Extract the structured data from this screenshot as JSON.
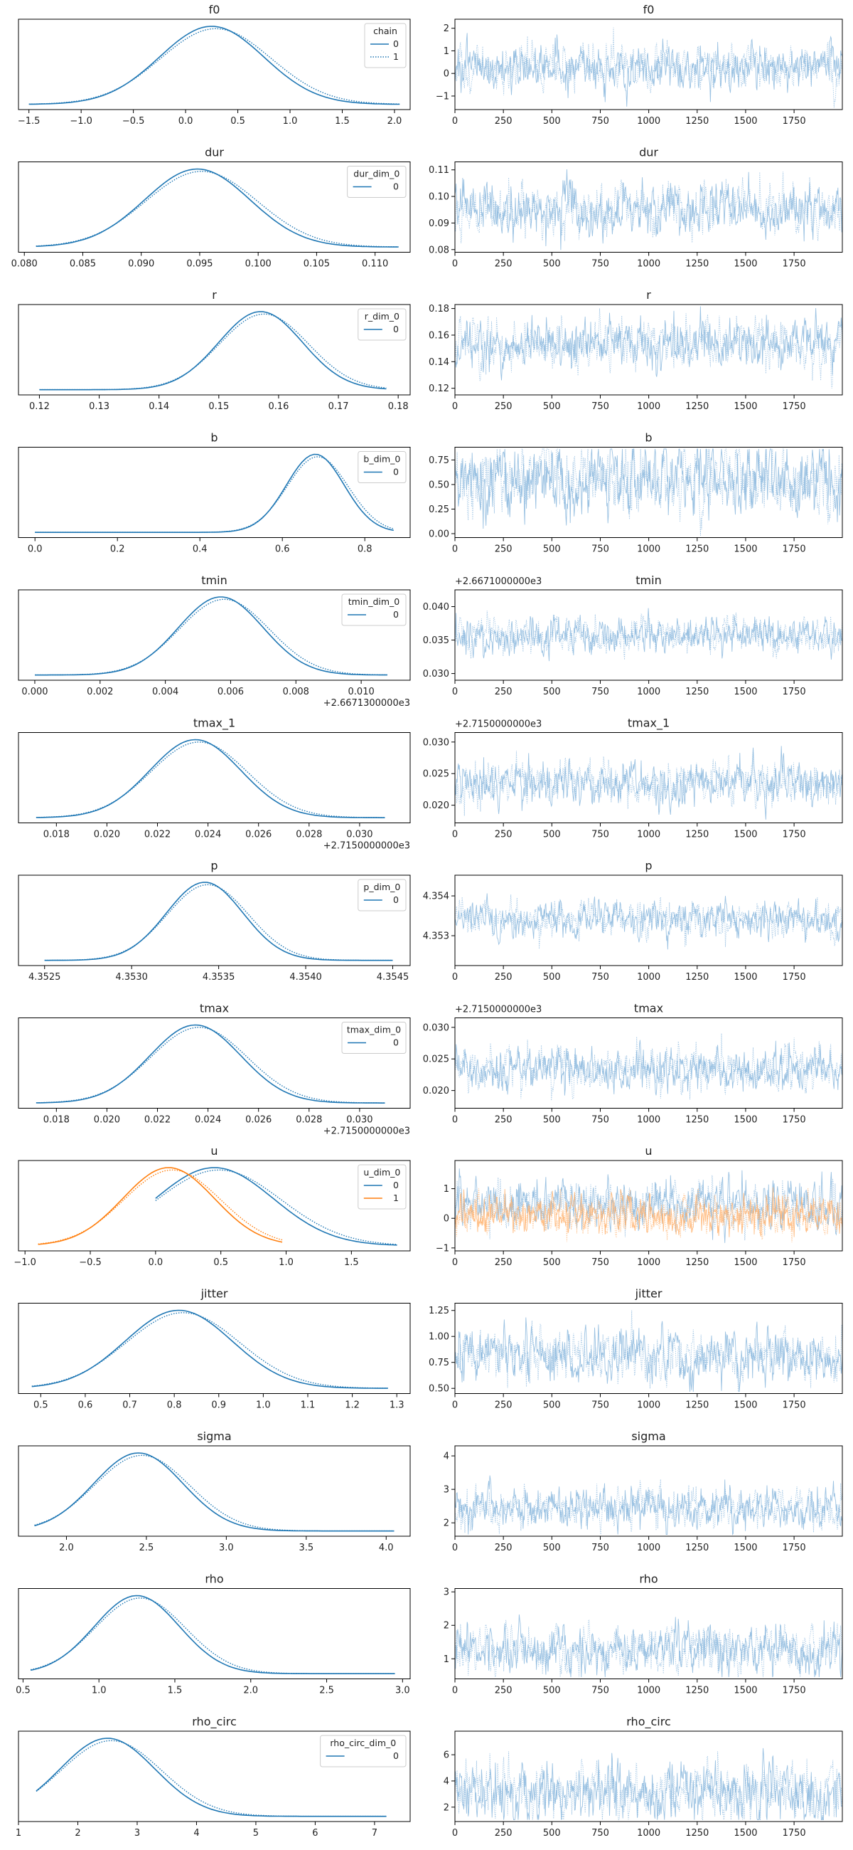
{
  "chart_data": {
    "type": "line",
    "colors": {
      "chain0": "#1f77b4",
      "chain1": "#ff7f0e",
      "trace": "#8ab7dd",
      "trace_u1": "#ffb370"
    },
    "trace_x_ticks": [
      "0",
      "250",
      "500",
      "750",
      "1000",
      "1250",
      "1500",
      "1750"
    ],
    "trace_xlim": [
      0,
      1999
    ],
    "rows": [
      {
        "name": "f0",
        "kde": {
          "title": "f0",
          "xlim": [
            -1.6,
            2.15
          ],
          "ticks": [
            -1.5,
            -1.0,
            -0.5,
            0.0,
            0.5,
            1.0,
            1.5,
            2.0
          ],
          "tick_labels": [
            "−1.5",
            "−1.0",
            "−0.5",
            "0.0",
            "0.5",
            "1.0",
            "1.5",
            "2.0"
          ],
          "mean": 0.25,
          "sd": 0.5,
          "range": [
            -1.5,
            2.05
          ],
          "legend": {
            "title": "chain",
            "entries": [
              "0",
              "1"
            ]
          }
        },
        "trace": {
          "title": "f0",
          "ylim": [
            -1.6,
            2.4
          ],
          "ticks": [
            -1,
            0,
            1,
            2
          ],
          "tick_labels": [
            "−1",
            "0",
            "1",
            "2"
          ],
          "mean": 0.25,
          "sd": 0.5
        }
      },
      {
        "name": "dur",
        "kde": {
          "title": "dur",
          "xlim": [
            0.0795,
            0.113
          ],
          "ticks": [
            0.08,
            0.085,
            0.09,
            0.095,
            0.1,
            0.105,
            0.11
          ],
          "tick_labels": [
            "0.080",
            "0.085",
            "0.090",
            "0.095",
            "0.100",
            "0.105",
            "0.110"
          ],
          "mean": 0.0948,
          "sd": 0.0045,
          "range": [
            0.081,
            0.112
          ],
          "legend": {
            "title": "dur_dim_0",
            "entries": [
              "0"
            ]
          }
        },
        "trace": {
          "title": "dur",
          "ylim": [
            0.079,
            0.113
          ],
          "ticks": [
            0.08,
            0.09,
            0.1,
            0.11
          ],
          "tick_labels": [
            "0.08",
            "0.09",
            "0.10",
            "0.11"
          ],
          "mean": 0.0948,
          "sd": 0.0045
        }
      },
      {
        "name": "r",
        "kde": {
          "title": "r",
          "xlim": [
            0.1165,
            0.182
          ],
          "ticks": [
            0.12,
            0.13,
            0.14,
            0.15,
            0.16,
            0.17,
            0.18
          ],
          "tick_labels": [
            "0.12",
            "0.13",
            "0.14",
            "0.15",
            "0.16",
            "0.17",
            "0.18"
          ],
          "mean": 0.157,
          "sd": 0.007,
          "range": [
            0.12,
            0.178
          ],
          "legend": {
            "title": "r_dim_0",
            "entries": [
              "0"
            ]
          }
        },
        "trace": {
          "title": "r",
          "ylim": [
            0.115,
            0.183
          ],
          "ticks": [
            0.12,
            0.14,
            0.16,
            0.18
          ],
          "tick_labels": [
            "0.12",
            "0.14",
            "0.16",
            "0.18"
          ],
          "mean": 0.153,
          "sd": 0.009
        }
      },
      {
        "name": "b",
        "kde": {
          "title": "b",
          "xlim": [
            -0.04,
            0.91
          ],
          "ticks": [
            0.0,
            0.2,
            0.4,
            0.6,
            0.8
          ],
          "tick_labels": [
            "0.0",
            "0.2",
            "0.4",
            "0.6",
            "0.8"
          ],
          "mean": 0.68,
          "sd": 0.07,
          "range": [
            0.0,
            0.87
          ],
          "legend": {
            "title": "b_dim_0",
            "entries": [
              "0"
            ]
          }
        },
        "trace": {
          "title": "b",
          "ylim": [
            -0.04,
            0.88
          ],
          "ticks": [
            0.0,
            0.25,
            0.5,
            0.75
          ],
          "tick_labels": [
            "0.00",
            "0.25",
            "0.50",
            "0.75"
          ],
          "mean": 0.55,
          "sd": 0.18
        }
      },
      {
        "name": "tmin",
        "kde": {
          "title": "tmin",
          "xlim": [
            -0.0005,
            0.0115
          ],
          "ticks": [
            0.0,
            0.002,
            0.004,
            0.006,
            0.008,
            0.01
          ],
          "tick_labels": [
            "0.000",
            "0.002",
            "0.004",
            "0.006",
            "0.008",
            "0.010"
          ],
          "offset": "+2.6671300000e3",
          "mean": 0.0057,
          "sd": 0.0013,
          "range": [
            0.0,
            0.0108
          ],
          "legend": {
            "title": "tmin_dim_0",
            "entries": [
              "0"
            ]
          }
        },
        "trace": {
          "title": "tmin",
          "ylim": [
            0.029,
            0.0425
          ],
          "ticks": [
            0.03,
            0.035,
            0.04
          ],
          "tick_labels": [
            "0.030",
            "0.035",
            "0.040"
          ],
          "offset": "+2.6671000000e3",
          "mean": 0.0357,
          "sd": 0.0013
        }
      },
      {
        "name": "tmax_1",
        "kde": {
          "title": "tmax_1",
          "xlim": [
            0.0165,
            0.032
          ],
          "ticks": [
            0.018,
            0.02,
            0.022,
            0.024,
            0.026,
            0.028,
            0.03
          ],
          "tick_labels": [
            "0.018",
            "0.020",
            "0.022",
            "0.024",
            "0.026",
            "0.028",
            "0.030"
          ],
          "offset": "+2.7150000000e3",
          "mean": 0.0235,
          "sd": 0.0018,
          "range": [
            0.0172,
            0.031
          ],
          "legend": null
        },
        "trace": {
          "title": "tmax_1",
          "ylim": [
            0.0172,
            0.0315
          ],
          "ticks": [
            0.02,
            0.025,
            0.03
          ],
          "tick_labels": [
            "0.020",
            "0.025",
            "0.030"
          ],
          "offset": "+2.7150000000e3",
          "mean": 0.0235,
          "sd": 0.0017
        }
      },
      {
        "name": "p",
        "kde": {
          "title": "p",
          "xlim": [
            4.35235,
            4.3546
          ],
          "ticks": [
            4.3525,
            4.353,
            4.3535,
            4.354,
            4.3545
          ],
          "tick_labels": [
            "4.3525",
            "4.3530",
            "4.3535",
            "4.3540",
            "4.3545"
          ],
          "mean": 4.35342,
          "sd": 0.00022,
          "range": [
            4.3525,
            4.3545
          ],
          "legend": {
            "title": "p_dim_0",
            "entries": [
              "0"
            ]
          }
        },
        "trace": {
          "title": "p",
          "ylim": [
            4.35225,
            4.35452
          ],
          "ticks": [
            4.353,
            4.354
          ],
          "tick_labels": [
            "4.353",
            "4.354"
          ],
          "mean": 4.35342,
          "sd": 0.00022
        }
      },
      {
        "name": "tmax",
        "kde": {
          "title": "tmax",
          "xlim": [
            0.0165,
            0.032
          ],
          "ticks": [
            0.018,
            0.02,
            0.022,
            0.024,
            0.026,
            0.028,
            0.03
          ],
          "tick_labels": [
            "0.018",
            "0.020",
            "0.022",
            "0.024",
            "0.026",
            "0.028",
            "0.030"
          ],
          "offset": "+2.7150000000e3",
          "mean": 0.0235,
          "sd": 0.0018,
          "range": [
            0.0172,
            0.031
          ],
          "legend": {
            "title": "tmax_dim_0",
            "entries": [
              "0"
            ]
          }
        },
        "trace": {
          "title": "tmax",
          "ylim": [
            0.0172,
            0.0315
          ],
          "ticks": [
            0.02,
            0.025,
            0.03
          ],
          "tick_labels": [
            "0.020",
            "0.025",
            "0.030"
          ],
          "offset": "+2.7150000000e3",
          "mean": 0.0235,
          "sd": 0.0017
        }
      },
      {
        "name": "u",
        "kde": {
          "title": "u",
          "xlim": [
            -1.05,
            1.95
          ],
          "ticks": [
            -1.0,
            -0.5,
            0.0,
            0.5,
            1.0,
            1.5
          ],
          "tick_labels": [
            "−1.0",
            "−0.5",
            "0.0",
            "0.5",
            "1.0",
            "1.5"
          ],
          "mean": 0.45,
          "sd": 0.45,
          "range": [
            0.0,
            1.85
          ],
          "mean2": 0.1,
          "sd2": 0.35,
          "range2": [
            -0.9,
            0.97
          ],
          "legend": {
            "title": "u_dim_0",
            "entries": [
              "0",
              "1"
            ]
          }
        },
        "trace": {
          "title": "u",
          "ylim": [
            -1.1,
            1.95
          ],
          "ticks": [
            -1,
            0,
            1
          ],
          "tick_labels": [
            "−1",
            "0",
            "1"
          ],
          "mean": 0.45,
          "sd": 0.4,
          "mean2": 0.1,
          "sd2": 0.33
        }
      },
      {
        "name": "jitter",
        "kde": {
          "title": "jitter",
          "xlim": [
            0.45,
            1.33
          ],
          "ticks": [
            0.5,
            0.6,
            0.7,
            0.8,
            0.9,
            1.0,
            1.1,
            1.2,
            1.3
          ],
          "tick_labels": [
            "0.5",
            "0.6",
            "0.7",
            "0.8",
            "0.9",
            "1.0",
            "1.1",
            "1.2",
            "1.3"
          ],
          "mean": 0.81,
          "sd": 0.12,
          "range": [
            0.48,
            1.28
          ],
          "legend": null
        },
        "trace": {
          "title": "jitter",
          "ylim": [
            0.45,
            1.32
          ],
          "ticks": [
            0.5,
            0.75,
            1.0,
            1.25
          ],
          "tick_labels": [
            "0.50",
            "0.75",
            "1.00",
            "1.25"
          ],
          "mean": 0.81,
          "sd": 0.12
        }
      },
      {
        "name": "sigma",
        "kde": {
          "title": "sigma",
          "xlim": [
            1.7,
            4.15
          ],
          "ticks": [
            2.0,
            2.5,
            3.0,
            3.5,
            4.0
          ],
          "tick_labels": [
            "2.0",
            "2.5",
            "3.0",
            "3.5",
            "4.0"
          ],
          "mean": 2.45,
          "sd": 0.28,
          "range": [
            1.8,
            4.05
          ],
          "legend": null
        },
        "trace": {
          "title": "sigma",
          "ylim": [
            1.6,
            4.3
          ],
          "ticks": [
            2,
            3,
            4
          ],
          "tick_labels": [
            "2",
            "3",
            "4"
          ],
          "mean": 2.45,
          "sd": 0.3
        }
      },
      {
        "name": "rho",
        "kde": {
          "title": "rho",
          "xlim": [
            0.47,
            3.05
          ],
          "ticks": [
            0.5,
            1.0,
            1.5,
            2.0,
            2.5,
            3.0
          ],
          "tick_labels": [
            "0.5",
            "1.0",
            "1.5",
            "2.0",
            "2.5",
            "3.0"
          ],
          "mean": 1.25,
          "sd": 0.28,
          "range": [
            0.55,
            2.95
          ],
          "legend": null
        },
        "trace": {
          "title": "rho",
          "ylim": [
            0.4,
            3.1
          ],
          "ticks": [
            1,
            2,
            3
          ],
          "tick_labels": [
            "1",
            "2",
            "3"
          ],
          "mean": 1.3,
          "sd": 0.35
        }
      },
      {
        "name": "rho_circ",
        "kde": {
          "title": "rho_circ",
          "xlim": [
            1.0,
            7.6
          ],
          "ticks": [
            1,
            2,
            3,
            4,
            5,
            6,
            7
          ],
          "tick_labels": [
            "1",
            "2",
            "3",
            "4",
            "5",
            "6",
            "7"
          ],
          "mean": 2.5,
          "sd": 0.8,
          "range": [
            1.3,
            7.2
          ],
          "legend": {
            "title": "rho_circ_dim_0",
            "entries": [
              "0"
            ]
          }
        },
        "trace": {
          "title": "rho_circ",
          "ylim": [
            0.9,
            7.8
          ],
          "ticks": [
            2,
            4,
            6
          ],
          "tick_labels": [
            "2",
            "4",
            "6"
          ],
          "mean": 3.2,
          "sd": 1.1
        }
      }
    ]
  }
}
